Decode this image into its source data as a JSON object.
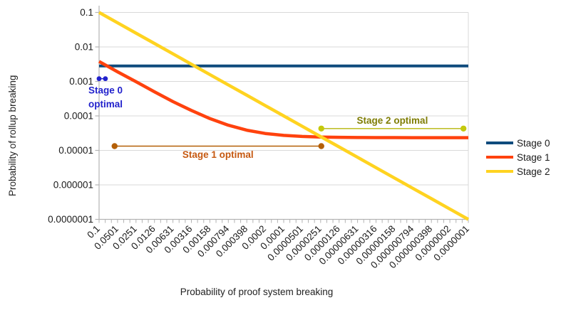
{
  "chart_data": {
    "type": "line",
    "title": "",
    "x_axis": {
      "label": "Probability of proof system breaking",
      "scale": "log",
      "direction": "decreasing",
      "min": 1e-07,
      "max": 0.1,
      "tick_labels": [
        "0.1",
        "0.0501",
        "0.0251",
        "0.0126",
        "0.00631",
        "0.00316",
        "0.00158",
        "0.000794",
        "0.000398",
        "0.0002",
        "0.0001",
        "0.0000501",
        "0.0000251",
        "0.0000126",
        "0.00000631",
        "0.00000316",
        "0.00000158",
        "0.000000794",
        "0.000000398",
        "0.0000002",
        "0.0000001"
      ]
    },
    "y_axis": {
      "label": "Probability of rollup breaking",
      "scale": "log",
      "min": 1e-07,
      "max": 0.1,
      "tick_labels": [
        "0.1",
        "0.01",
        "0.001",
        "0.0001",
        "0.00001",
        "0.000001",
        "0.0000001"
      ]
    },
    "x": [
      0.1,
      0.0501,
      0.0251,
      0.0126,
      0.00631,
      0.00316,
      0.00158,
      0.000794,
      0.000398,
      0.0002,
      0.0001,
      5.01e-05,
      2.51e-05,
      1.26e-05,
      6.31e-06,
      3.16e-06,
      1.58e-06,
      7.94e-07,
      3.98e-07,
      2e-07,
      1e-07
    ],
    "series": [
      {
        "name": "Stage 0",
        "color": "#0f4b7d",
        "values": [
          0.0028,
          0.0028,
          0.0028,
          0.0028,
          0.0028,
          0.0028,
          0.0028,
          0.0028,
          0.0028,
          0.0028,
          0.0028,
          0.0028,
          0.0028,
          0.0028,
          0.0028,
          0.0028,
          0.0028,
          0.0028,
          0.0028,
          0.0028,
          0.0028
        ]
      },
      {
        "name": "Stage 1",
        "color": "#ff420e",
        "values": [
          0.0038,
          0.0019,
          0.00098,
          0.0005,
          0.00026,
          0.000144,
          8.36e-05,
          5.36e-05,
          3.86e-05,
          3.1e-05,
          2.72e-05,
          2.53e-05,
          2.44e-05,
          2.39e-05,
          2.36e-05,
          2.35e-05,
          2.35e-05,
          2.34e-05,
          2.34e-05,
          2.34e-05,
          2.34e-05
        ]
      },
      {
        "name": "Stage 2",
        "color": "#ffd320",
        "values": [
          0.1,
          0.0501,
          0.0251,
          0.0126,
          0.00631,
          0.00316,
          0.00158,
          0.000794,
          0.000398,
          0.0002,
          0.0001,
          5.01e-05,
          2.51e-05,
          1.26e-05,
          6.31e-06,
          3.16e-06,
          1.58e-06,
          7.94e-07,
          3.98e-07,
          2e-07,
          1e-07
        ]
      }
    ],
    "annotations": [
      {
        "label_lines": [
          "Stage 0",
          "optimal"
        ],
        "text_color": "#2222cc",
        "line_color": "#2222cc",
        "dot_color": "#2222cc",
        "x_start": 0.1,
        "x_end": 0.079,
        "y": 0.0012,
        "label_pos": "below-left"
      },
      {
        "label_lines": [
          "Stage 1 optimal"
        ],
        "text_color": "#c65911",
        "line_color": "#b45f06",
        "dot_color": "#b45f06",
        "x_start": 0.056,
        "x_end": 2.45e-05,
        "y": 1.33e-05,
        "label_pos": "below-center"
      },
      {
        "label_lines": [
          "Stage 2 optimal"
        ],
        "text_color": "#7f7d05",
        "line_color": "#b5b50a",
        "dot_color": "#c4c90c",
        "x_start": 2.45e-05,
        "x_end": 1.2e-07,
        "y": 4.3e-05,
        "label_pos": "above-center"
      }
    ],
    "legend": {
      "position": "right",
      "entries": [
        "Stage 0",
        "Stage 1",
        "Stage 2"
      ]
    },
    "grid": {
      "horizontal": true,
      "vertical": false,
      "color": "#d9d9d9",
      "axis_color": "#b3b3b3",
      "tick_label_color": "#1a1a1a"
    }
  }
}
